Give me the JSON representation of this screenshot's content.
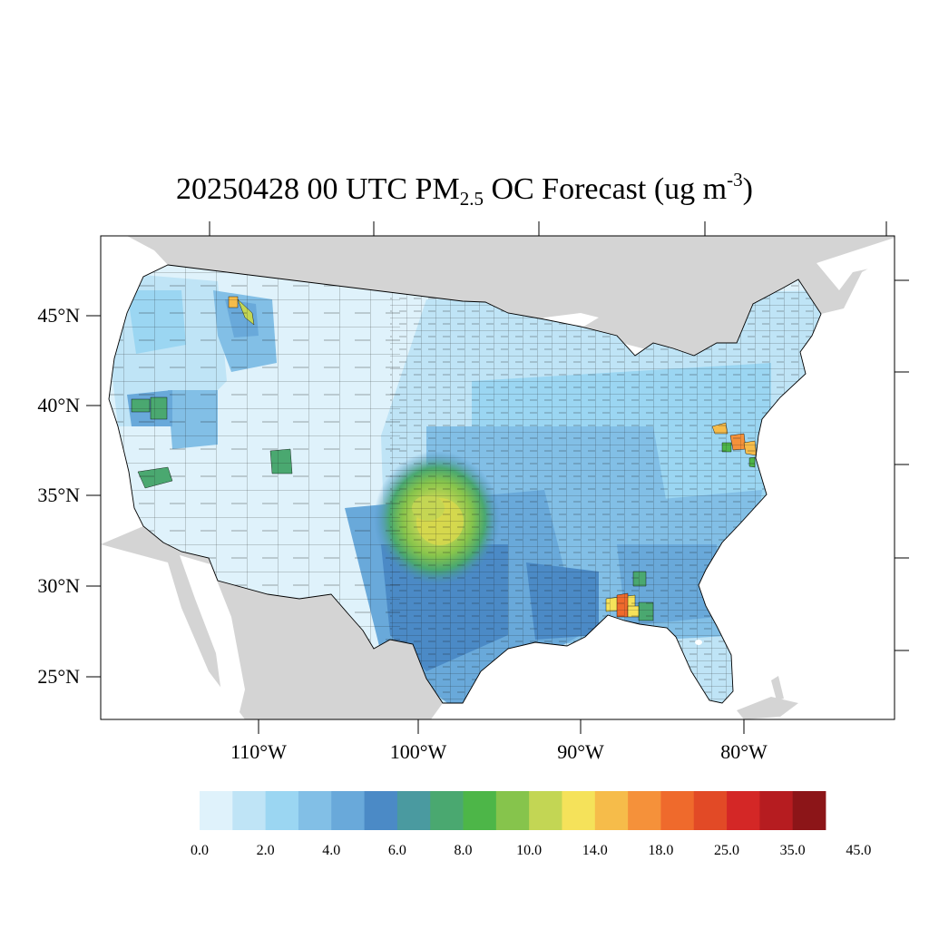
{
  "title": {
    "prefix": "20250428 00 UTC PM",
    "sub": "2.5",
    "middle": " OC Forecast (ug m",
    "sup": "-3",
    "suffix": ")"
  },
  "axes": {
    "lat_labels": [
      "45°N",
      "40°N",
      "35°N",
      "30°N",
      "25°N"
    ],
    "lon_labels": [
      "110°W",
      "100°W",
      "90°W",
      "80°W"
    ]
  },
  "colorbar": {
    "labels": [
      "0.0",
      "2.0",
      "4.0",
      "6.0",
      "8.0",
      "10.0",
      "14.0",
      "18.0",
      "25.0",
      "35.0",
      "45.0"
    ],
    "colors": [
      "#dff2fb",
      "#bfe4f6",
      "#9bd6f2",
      "#82bfe6",
      "#69a9da",
      "#4b8ac6",
      "#4a9aa0",
      "#4aa870",
      "#4db648",
      "#86c44c",
      "#c3d654",
      "#f5e25a",
      "#f6bc4a",
      "#f5913a",
      "#ef6a2c",
      "#e24a26",
      "#d42726",
      "#b61c20",
      "#8c1518"
    ]
  },
  "colors": {
    "land_background": "#d4d4d4",
    "water": "#ffffff",
    "frame": "#000000"
  }
}
